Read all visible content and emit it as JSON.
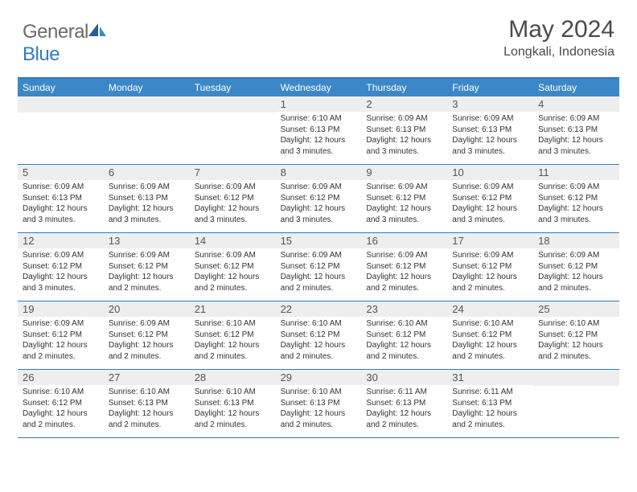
{
  "brand": {
    "word1": "General",
    "word2": "Blue",
    "word1_color": "#6b6b6b",
    "word2_color": "#2e7cc0",
    "icon_color_dark": "#1f5f99",
    "icon_color_light": "#3b87c8"
  },
  "title": {
    "month": "May 2024",
    "location": "Longkali, Indonesia",
    "text_color": "#4a4a4a",
    "month_fontsize": 30,
    "location_fontsize": 16
  },
  "colors": {
    "header_bg": "#3b87c8",
    "header_text": "#ffffff",
    "border": "#2e7cc0",
    "daynum_bg": "#eeeeee",
    "daynum_text": "#555555",
    "body_text": "#333333",
    "page_bg": "#ffffff"
  },
  "weekdays": [
    "Sunday",
    "Monday",
    "Tuesday",
    "Wednesday",
    "Thursday",
    "Friday",
    "Saturday"
  ],
  "weeks": [
    [
      {
        "day": "",
        "sunrise": "",
        "sunset": "",
        "daylight": ""
      },
      {
        "day": "",
        "sunrise": "",
        "sunset": "",
        "daylight": ""
      },
      {
        "day": "",
        "sunrise": "",
        "sunset": "",
        "daylight": ""
      },
      {
        "day": "1",
        "sunrise": "Sunrise: 6:10 AM",
        "sunset": "Sunset: 6:13 PM",
        "daylight": "Daylight: 12 hours and 3 minutes."
      },
      {
        "day": "2",
        "sunrise": "Sunrise: 6:09 AM",
        "sunset": "Sunset: 6:13 PM",
        "daylight": "Daylight: 12 hours and 3 minutes."
      },
      {
        "day": "3",
        "sunrise": "Sunrise: 6:09 AM",
        "sunset": "Sunset: 6:13 PM",
        "daylight": "Daylight: 12 hours and 3 minutes."
      },
      {
        "day": "4",
        "sunrise": "Sunrise: 6:09 AM",
        "sunset": "Sunset: 6:13 PM",
        "daylight": "Daylight: 12 hours and 3 minutes."
      }
    ],
    [
      {
        "day": "5",
        "sunrise": "Sunrise: 6:09 AM",
        "sunset": "Sunset: 6:13 PM",
        "daylight": "Daylight: 12 hours and 3 minutes."
      },
      {
        "day": "6",
        "sunrise": "Sunrise: 6:09 AM",
        "sunset": "Sunset: 6:13 PM",
        "daylight": "Daylight: 12 hours and 3 minutes."
      },
      {
        "day": "7",
        "sunrise": "Sunrise: 6:09 AM",
        "sunset": "Sunset: 6:12 PM",
        "daylight": "Daylight: 12 hours and 3 minutes."
      },
      {
        "day": "8",
        "sunrise": "Sunrise: 6:09 AM",
        "sunset": "Sunset: 6:12 PM",
        "daylight": "Daylight: 12 hours and 3 minutes."
      },
      {
        "day": "9",
        "sunrise": "Sunrise: 6:09 AM",
        "sunset": "Sunset: 6:12 PM",
        "daylight": "Daylight: 12 hours and 3 minutes."
      },
      {
        "day": "10",
        "sunrise": "Sunrise: 6:09 AM",
        "sunset": "Sunset: 6:12 PM",
        "daylight": "Daylight: 12 hours and 3 minutes."
      },
      {
        "day": "11",
        "sunrise": "Sunrise: 6:09 AM",
        "sunset": "Sunset: 6:12 PM",
        "daylight": "Daylight: 12 hours and 3 minutes."
      }
    ],
    [
      {
        "day": "12",
        "sunrise": "Sunrise: 6:09 AM",
        "sunset": "Sunset: 6:12 PM",
        "daylight": "Daylight: 12 hours and 3 minutes."
      },
      {
        "day": "13",
        "sunrise": "Sunrise: 6:09 AM",
        "sunset": "Sunset: 6:12 PM",
        "daylight": "Daylight: 12 hours and 2 minutes."
      },
      {
        "day": "14",
        "sunrise": "Sunrise: 6:09 AM",
        "sunset": "Sunset: 6:12 PM",
        "daylight": "Daylight: 12 hours and 2 minutes."
      },
      {
        "day": "15",
        "sunrise": "Sunrise: 6:09 AM",
        "sunset": "Sunset: 6:12 PM",
        "daylight": "Daylight: 12 hours and 2 minutes."
      },
      {
        "day": "16",
        "sunrise": "Sunrise: 6:09 AM",
        "sunset": "Sunset: 6:12 PM",
        "daylight": "Daylight: 12 hours and 2 minutes."
      },
      {
        "day": "17",
        "sunrise": "Sunrise: 6:09 AM",
        "sunset": "Sunset: 6:12 PM",
        "daylight": "Daylight: 12 hours and 2 minutes."
      },
      {
        "day": "18",
        "sunrise": "Sunrise: 6:09 AM",
        "sunset": "Sunset: 6:12 PM",
        "daylight": "Daylight: 12 hours and 2 minutes."
      }
    ],
    [
      {
        "day": "19",
        "sunrise": "Sunrise: 6:09 AM",
        "sunset": "Sunset: 6:12 PM",
        "daylight": "Daylight: 12 hours and 2 minutes."
      },
      {
        "day": "20",
        "sunrise": "Sunrise: 6:09 AM",
        "sunset": "Sunset: 6:12 PM",
        "daylight": "Daylight: 12 hours and 2 minutes."
      },
      {
        "day": "21",
        "sunrise": "Sunrise: 6:10 AM",
        "sunset": "Sunset: 6:12 PM",
        "daylight": "Daylight: 12 hours and 2 minutes."
      },
      {
        "day": "22",
        "sunrise": "Sunrise: 6:10 AM",
        "sunset": "Sunset: 6:12 PM",
        "daylight": "Daylight: 12 hours and 2 minutes."
      },
      {
        "day": "23",
        "sunrise": "Sunrise: 6:10 AM",
        "sunset": "Sunset: 6:12 PM",
        "daylight": "Daylight: 12 hours and 2 minutes."
      },
      {
        "day": "24",
        "sunrise": "Sunrise: 6:10 AM",
        "sunset": "Sunset: 6:12 PM",
        "daylight": "Daylight: 12 hours and 2 minutes."
      },
      {
        "day": "25",
        "sunrise": "Sunrise: 6:10 AM",
        "sunset": "Sunset: 6:12 PM",
        "daylight": "Daylight: 12 hours and 2 minutes."
      }
    ],
    [
      {
        "day": "26",
        "sunrise": "Sunrise: 6:10 AM",
        "sunset": "Sunset: 6:12 PM",
        "daylight": "Daylight: 12 hours and 2 minutes."
      },
      {
        "day": "27",
        "sunrise": "Sunrise: 6:10 AM",
        "sunset": "Sunset: 6:13 PM",
        "daylight": "Daylight: 12 hours and 2 minutes."
      },
      {
        "day": "28",
        "sunrise": "Sunrise: 6:10 AM",
        "sunset": "Sunset: 6:13 PM",
        "daylight": "Daylight: 12 hours and 2 minutes."
      },
      {
        "day": "29",
        "sunrise": "Sunrise: 6:10 AM",
        "sunset": "Sunset: 6:13 PM",
        "daylight": "Daylight: 12 hours and 2 minutes."
      },
      {
        "day": "30",
        "sunrise": "Sunrise: 6:11 AM",
        "sunset": "Sunset: 6:13 PM",
        "daylight": "Daylight: 12 hours and 2 minutes."
      },
      {
        "day": "31",
        "sunrise": "Sunrise: 6:11 AM",
        "sunset": "Sunset: 6:13 PM",
        "daylight": "Daylight: 12 hours and 2 minutes."
      },
      {
        "day": "",
        "sunrise": "",
        "sunset": "",
        "daylight": ""
      }
    ]
  ]
}
